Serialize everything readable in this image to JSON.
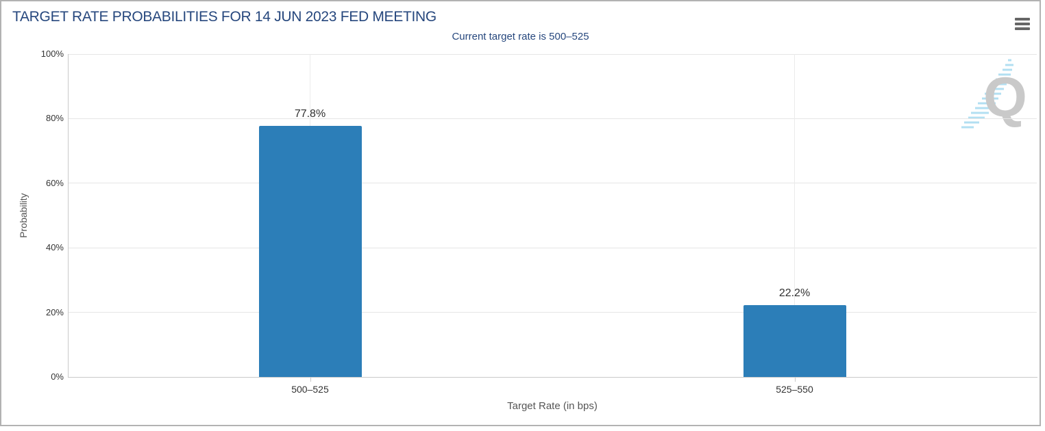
{
  "page": {
    "menu_icon": "hamburger-menu-icon",
    "watermark_icon": "quikstrike-q-logo-icon"
  },
  "chart_data": {
    "type": "bar",
    "title": "TARGET RATE PROBABILITIES FOR 14 JUN 2023 FED MEETING",
    "subtitle": "Current target rate is 500–525",
    "categories": [
      "500–525",
      "525–550"
    ],
    "values": [
      77.8,
      22.2
    ],
    "data_labels": [
      "77.8%",
      "22.2%"
    ],
    "xlabel": "Target Rate (in bps)",
    "ylabel": "Probability",
    "ylim": [
      0,
      100
    ],
    "ytick_values": [
      0,
      20,
      40,
      60,
      80,
      100
    ],
    "ytick_labels": [
      "0%",
      "20%",
      "40%",
      "60%",
      "80%",
      "100%"
    ],
    "grid": true,
    "legend": "none"
  },
  "colors": {
    "bar": "#2c7eb8",
    "title_text": "#26477d",
    "gridline": "#e6e6e6",
    "axis_line": "#c9c9c9",
    "tick_label": "#333333",
    "axis_title": "#555555",
    "menu_icon": "#666666",
    "watermark_q": "#c9c9c9",
    "watermark_swoosh": "#a5daf0"
  }
}
